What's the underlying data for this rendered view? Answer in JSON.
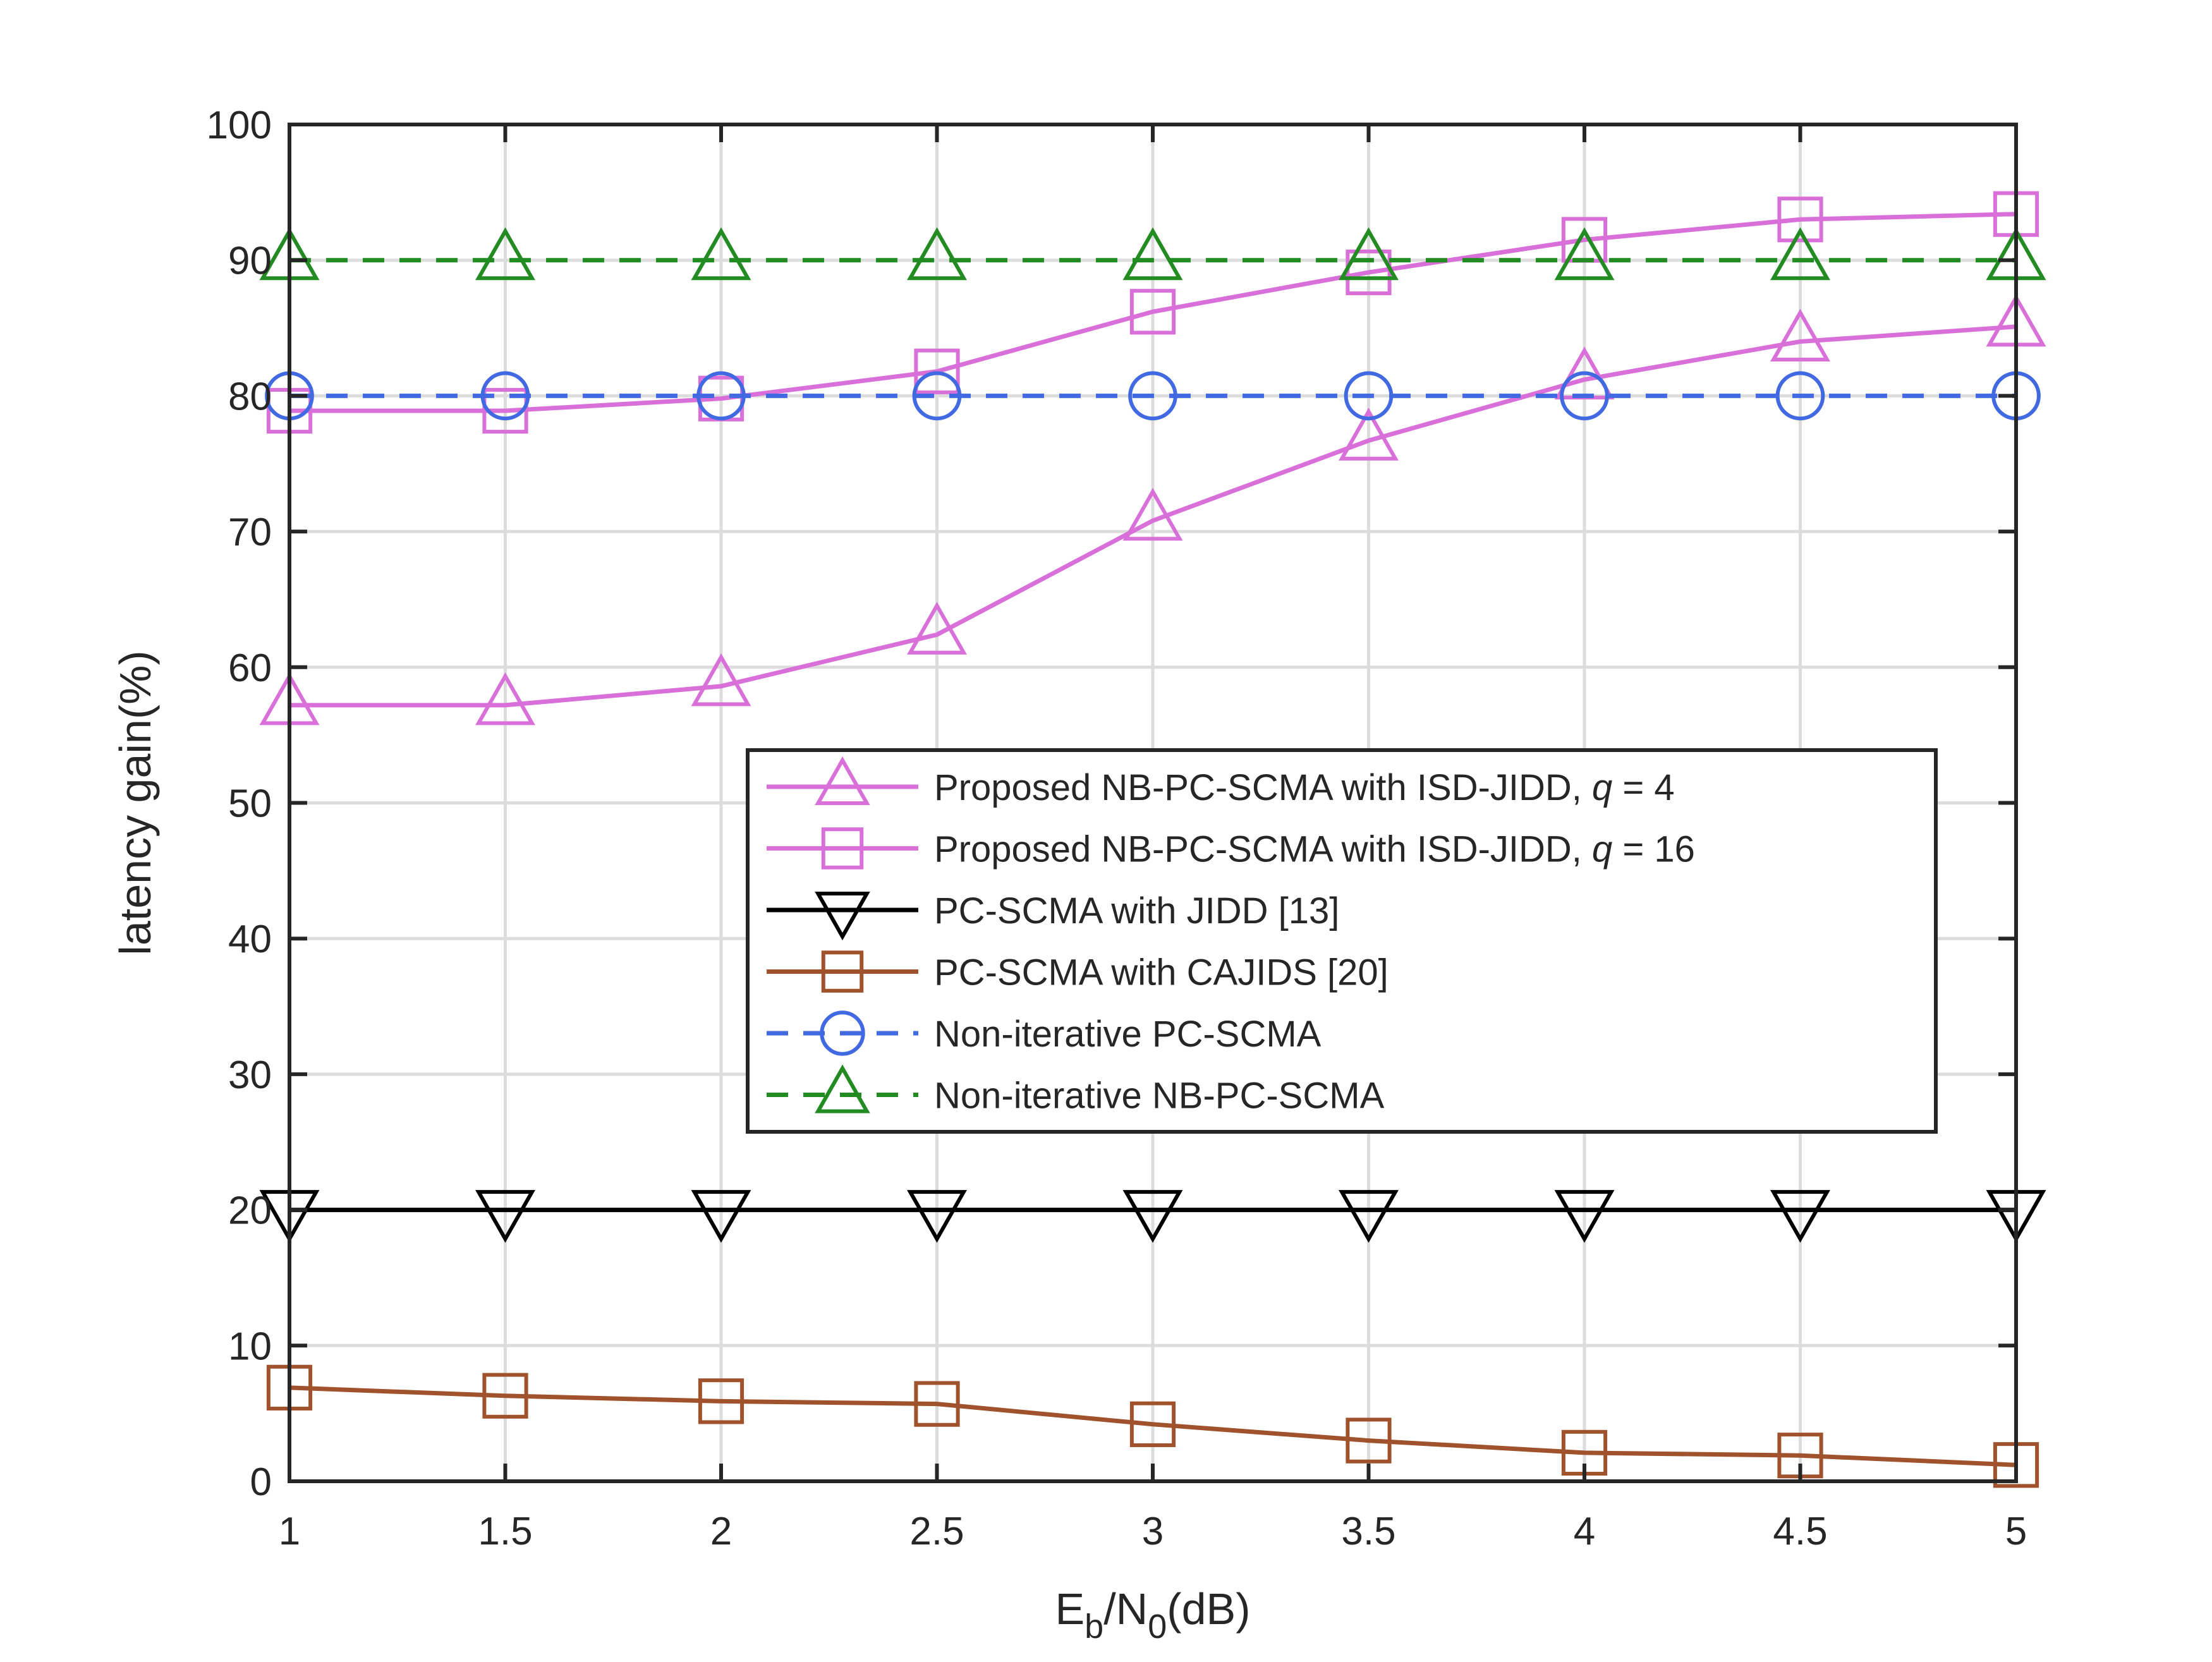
{
  "chart_data": {
    "type": "line",
    "title": "",
    "xlabel_parts": {
      "e": "E",
      "b": "b",
      "slash": "/N",
      "zero": "0",
      "unit": "(dB)"
    },
    "ylabel": "latency gain(%)",
    "x": [
      1,
      1.5,
      2,
      2.5,
      3,
      3.5,
      4,
      4.5,
      5
    ],
    "xlim": [
      1,
      5
    ],
    "ylim": [
      0,
      100
    ],
    "xticks": [
      "1",
      "1.5",
      "2",
      "2.5",
      "3",
      "3.5",
      "4",
      "4.5",
      "5"
    ],
    "yticks": [
      "0",
      "10",
      "20",
      "30",
      "40",
      "50",
      "60",
      "70",
      "80",
      "90",
      "100"
    ],
    "grid": true,
    "legend_position": "center-right",
    "series": [
      {
        "key": "nbpc-q4",
        "name_prefix": "Proposed NB-PC-SCMA with ISD-JIDD, ",
        "name_var": "q",
        "name_suffix": " = 4",
        "values": [
          57.2,
          57.2,
          58.6,
          62.4,
          70.8,
          76.7,
          81.2,
          84.0,
          85.1
        ],
        "color": "#D96FD9",
        "dash": "solid",
        "marker": "triangle-up"
      },
      {
        "key": "nbpc-q16",
        "name_prefix": "Proposed NB-PC-SCMA with ISD-JIDD, ",
        "name_var": "q",
        "name_suffix": " = 16",
        "values": [
          78.9,
          78.9,
          79.8,
          81.8,
          86.2,
          89.1,
          91.5,
          93.0,
          93.4
        ],
        "color": "#D96FD9",
        "dash": "solid",
        "marker": "square"
      },
      {
        "key": "pcscma-jidd",
        "name_prefix": "PC-SCMA with JIDD [13]",
        "name_var": "",
        "name_suffix": "",
        "values": [
          20,
          20,
          20,
          20,
          20,
          20,
          20,
          20,
          20
        ],
        "color": "#000000",
        "dash": "solid",
        "marker": "triangle-down"
      },
      {
        "key": "pcscma-cajids",
        "name_prefix": "PC-SCMA with CAJIDS [20]",
        "name_var": "",
        "name_suffix": "",
        "values": [
          6.9,
          6.3,
          5.9,
          5.7,
          4.2,
          3.0,
          2.1,
          1.9,
          1.2
        ],
        "color": "#A0522D",
        "dash": "solid",
        "marker": "square"
      },
      {
        "key": "noniter-pc",
        "name_prefix": "Non-iterative PC-SCMA",
        "name_var": "",
        "name_suffix": "",
        "values": [
          80,
          80,
          80,
          80,
          80,
          80,
          80,
          80,
          80
        ],
        "color": "#4169E1",
        "dash": "dashed",
        "marker": "circle"
      },
      {
        "key": "noniter-nbpc",
        "name_prefix": "Non-iterative NB-PC-SCMA",
        "name_var": "",
        "name_suffix": "",
        "values": [
          90,
          90,
          90,
          90,
          90,
          90,
          90,
          90,
          90
        ],
        "color": "#228B22",
        "dash": "dashed",
        "marker": "triangle-up"
      }
    ]
  }
}
